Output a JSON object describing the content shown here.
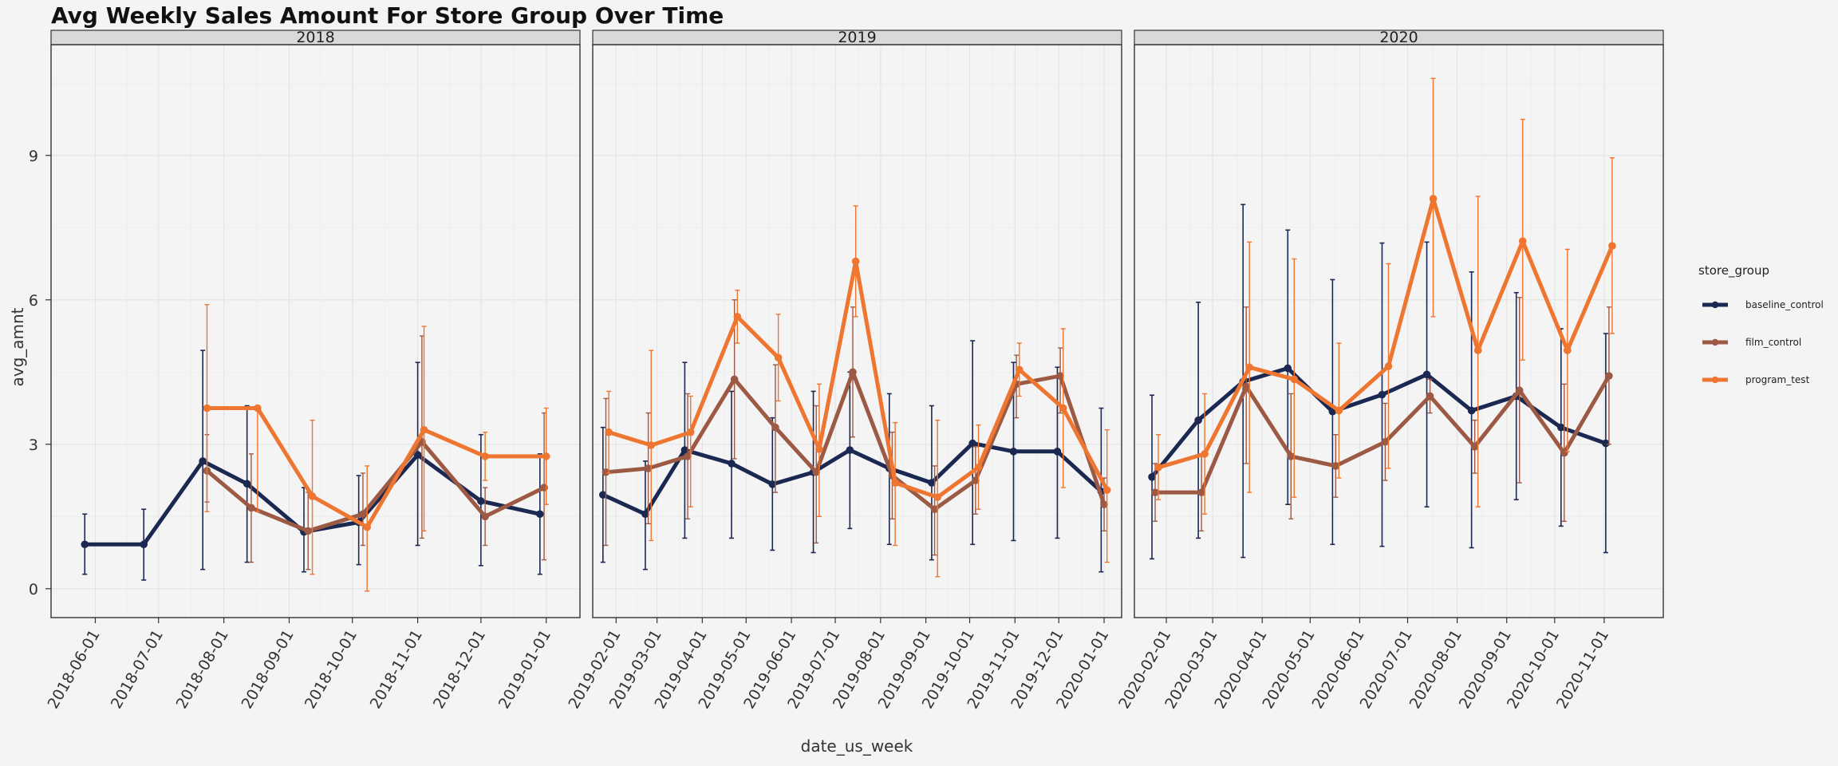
{
  "chart_data": {
    "type": "line",
    "title": "Avg Weekly Sales Amount For Store Group Over Time",
    "xlabel": "date_us_week",
    "ylabel": "avg_amnt",
    "ylim": [
      -0.6,
      11.3
    ],
    "yticks": [
      0,
      3,
      6,
      9
    ],
    "grid": true,
    "legend": {
      "title": "store_group",
      "position": "right"
    },
    "colors": {
      "baseline_control": "#1b2852",
      "film_control": "#9c5a44",
      "program_test": "#ee7630"
    },
    "panels": [
      {
        "label": "2018",
        "xlim": [
          "2018-05-11",
          "2019-01-17"
        ],
        "ticks": [
          "2018-06-01",
          "2018-07-01",
          "2018-08-01",
          "2018-09-01",
          "2018-10-01",
          "2018-11-01",
          "2018-12-01",
          "2019-01-01"
        ],
        "series": [
          {
            "name": "baseline_control",
            "points": [
              {
                "x": "2018-05-27",
                "y": 0.92,
                "lo": 0.3,
                "hi": 1.55
              },
              {
                "x": "2018-06-24",
                "y": 0.92,
                "lo": 0.18,
                "hi": 1.65
              },
              {
                "x": "2018-07-22",
                "y": 2.65,
                "lo": 0.4,
                "hi": 4.95
              },
              {
                "x": "2018-08-12",
                "y": 2.18,
                "lo": 0.55,
                "hi": 3.8
              },
              {
                "x": "2018-09-08",
                "y": 1.18,
                "lo": 0.35,
                "hi": 2.1
              },
              {
                "x": "2018-10-04",
                "y": 1.38,
                "lo": 0.5,
                "hi": 2.35
              },
              {
                "x": "2018-11-01",
                "y": 2.78,
                "lo": 0.9,
                "hi": 4.7
              },
              {
                "x": "2018-12-01",
                "y": 1.82,
                "lo": 0.48,
                "hi": 3.2
              },
              {
                "x": "2018-12-29",
                "y": 1.55,
                "lo": 0.3,
                "hi": 2.8
              }
            ]
          },
          {
            "name": "film_control",
            "points": [
              {
                "x": "2018-07-24",
                "y": 2.45,
                "lo": 1.8,
                "hi": 3.2
              },
              {
                "x": "2018-08-14",
                "y": 1.68,
                "lo": 0.55,
                "hi": 2.8
              },
              {
                "x": "2018-09-10",
                "y": 1.2,
                "lo": 0.4,
                "hi": 2.0
              },
              {
                "x": "2018-10-06",
                "y": 1.55,
                "lo": 0.9,
                "hi": 2.4
              },
              {
                "x": "2018-11-03",
                "y": 3.05,
                "lo": 1.05,
                "hi": 5.25
              },
              {
                "x": "2018-12-03",
                "y": 1.5,
                "lo": 0.9,
                "hi": 2.1
              },
              {
                "x": "2018-12-31",
                "y": 2.1,
                "lo": 0.6,
                "hi": 3.65
              }
            ]
          },
          {
            "name": "program_test",
            "points": [
              {
                "x": "2018-07-24",
                "y": 3.75,
                "lo": 1.6,
                "hi": 5.9
              },
              {
                "x": "2018-08-17",
                "y": 3.75,
                "lo": 1.6,
                "hi": 3.75
              },
              {
                "x": "2018-09-12",
                "y": 1.92,
                "lo": 0.3,
                "hi": 3.5
              },
              {
                "x": "2018-10-08",
                "y": 1.28,
                "lo": -0.05,
                "hi": 2.55
              },
              {
                "x": "2018-11-04",
                "y": 3.3,
                "lo": 1.2,
                "hi": 5.45
              },
              {
                "x": "2018-12-03",
                "y": 2.75,
                "lo": 2.25,
                "hi": 3.25
              },
              {
                "x": "2019-01-01",
                "y": 2.75,
                "lo": 1.75,
                "hi": 3.75
              }
            ]
          }
        ]
      },
      {
        "label": "2019",
        "xlim": [
          "2019-01-16",
          "2020-01-13"
        ],
        "ticks": [
          "2019-02-01",
          "2019-03-01",
          "2019-04-01",
          "2019-05-01",
          "2019-06-01",
          "2019-07-01",
          "2019-08-01",
          "2019-09-01",
          "2019-10-01",
          "2019-11-01",
          "2019-12-01",
          "2020-01-01"
        ],
        "series": [
          {
            "name": "baseline_control",
            "points": [
              {
                "x": "2019-01-23",
                "y": 1.95,
                "lo": 0.55,
                "hi": 3.35
              },
              {
                "x": "2019-02-21",
                "y": 1.55,
                "lo": 0.4,
                "hi": 2.65
              },
              {
                "x": "2019-03-20",
                "y": 2.88,
                "lo": 1.05,
                "hi": 4.7
              },
              {
                "x": "2019-04-21",
                "y": 2.6,
                "lo": 1.05,
                "hi": 4.1
              },
              {
                "x": "2019-05-19",
                "y": 2.17,
                "lo": 0.8,
                "hi": 3.55
              },
              {
                "x": "2019-06-16",
                "y": 2.42,
                "lo": 0.75,
                "hi": 4.1
              },
              {
                "x": "2019-07-11",
                "y": 2.88,
                "lo": 1.25,
                "hi": 4.5
              },
              {
                "x": "2019-08-07",
                "y": 2.5,
                "lo": 0.92,
                "hi": 4.05
              },
              {
                "x": "2019-09-05",
                "y": 2.2,
                "lo": 0.6,
                "hi": 3.8
              },
              {
                "x": "2019-10-03",
                "y": 3.02,
                "lo": 0.92,
                "hi": 5.15
              },
              {
                "x": "2019-10-31",
                "y": 2.85,
                "lo": 1.0,
                "hi": 4.7
              },
              {
                "x": "2019-11-30",
                "y": 2.85,
                "lo": 1.05,
                "hi": 4.6
              },
              {
                "x": "2019-12-30",
                "y": 2.02,
                "lo": 0.35,
                "hi": 3.75
              }
            ]
          },
          {
            "name": "film_control",
            "points": [
              {
                "x": "2019-01-25",
                "y": 2.42,
                "lo": 0.9,
                "hi": 3.95
              },
              {
                "x": "2019-02-23",
                "y": 2.5,
                "lo": 1.35,
                "hi": 3.65
              },
              {
                "x": "2019-03-22",
                "y": 2.75,
                "lo": 1.45,
                "hi": 4.05
              },
              {
                "x": "2019-04-23",
                "y": 4.35,
                "lo": 2.7,
                "hi": 6.0
              },
              {
                "x": "2019-05-21",
                "y": 3.35,
                "lo": 2.0,
                "hi": 4.65
              },
              {
                "x": "2019-06-18",
                "y": 2.42,
                "lo": 0.95,
                "hi": 3.8
              },
              {
                "x": "2019-07-13",
                "y": 4.5,
                "lo": 3.15,
                "hi": 5.85
              },
              {
                "x": "2019-08-09",
                "y": 2.35,
                "lo": 1.45,
                "hi": 3.25
              },
              {
                "x": "2019-09-07",
                "y": 1.65,
                "lo": 0.7,
                "hi": 2.55
              },
              {
                "x": "2019-10-05",
                "y": 2.25,
                "lo": 1.55,
                "hi": 2.95
              },
              {
                "x": "2019-11-02",
                "y": 4.25,
                "lo": 3.55,
                "hi": 4.85
              },
              {
                "x": "2019-12-02",
                "y": 4.42,
                "lo": 3.65,
                "hi": 5.0
              },
              {
                "x": "2020-01-01",
                "y": 1.75,
                "lo": 1.2,
                "hi": 2.3
              }
            ]
          },
          {
            "name": "program_test",
            "points": [
              {
                "x": "2019-01-27",
                "y": 3.25,
                "lo": 2.4,
                "hi": 4.1
              },
              {
                "x": "2019-02-25",
                "y": 2.98,
                "lo": 1.0,
                "hi": 4.95
              },
              {
                "x": "2019-03-24",
                "y": 3.25,
                "lo": 1.7,
                "hi": 4.0
              },
              {
                "x": "2019-04-25",
                "y": 5.65,
                "lo": 5.1,
                "hi": 6.2
              },
              {
                "x": "2019-05-23",
                "y": 4.8,
                "lo": 3.9,
                "hi": 5.7
              },
              {
                "x": "2019-06-20",
                "y": 2.9,
                "lo": 1.5,
                "hi": 4.25
              },
              {
                "x": "2019-07-15",
                "y": 6.8,
                "lo": 5.65,
                "hi": 7.95
              },
              {
                "x": "2019-08-11",
                "y": 2.2,
                "lo": 0.9,
                "hi": 3.45
              },
              {
                "x": "2019-09-09",
                "y": 1.9,
                "lo": 0.25,
                "hi": 3.5
              },
              {
                "x": "2019-10-07",
                "y": 2.52,
                "lo": 1.65,
                "hi": 3.4
              },
              {
                "x": "2019-11-04",
                "y": 4.55,
                "lo": 4.0,
                "hi": 5.1
              },
              {
                "x": "2019-12-04",
                "y": 3.75,
                "lo": 2.1,
                "hi": 5.4
              },
              {
                "x": "2020-01-03",
                "y": 2.05,
                "lo": 0.55,
                "hi": 3.3
              }
            ]
          }
        ]
      },
      {
        "label": "2020",
        "xlim": [
          "2020-01-12",
          "2020-12-08"
        ],
        "ticks": [
          "2020-02-01",
          "2020-03-01",
          "2020-04-01",
          "2020-05-01",
          "2020-06-01",
          "2020-07-01",
          "2020-08-01",
          "2020-09-01",
          "2020-10-01",
          "2020-11-01"
        ],
        "series": [
          {
            "name": "baseline_control",
            "points": [
              {
                "x": "2020-01-23",
                "y": 2.32,
                "lo": 0.62,
                "hi": 4.02
              },
              {
                "x": "2020-02-21",
                "y": 3.5,
                "lo": 1.05,
                "hi": 5.95
              },
              {
                "x": "2020-03-20",
                "y": 4.3,
                "lo": 0.65,
                "hi": 7.98
              },
              {
                "x": "2020-04-17",
                "y": 4.58,
                "lo": 1.75,
                "hi": 7.45
              },
              {
                "x": "2020-05-15",
                "y": 3.68,
                "lo": 0.92,
                "hi": 6.42
              },
              {
                "x": "2020-06-15",
                "y": 4.03,
                "lo": 0.88,
                "hi": 7.18
              },
              {
                "x": "2020-07-13",
                "y": 4.45,
                "lo": 1.7,
                "hi": 7.2
              },
              {
                "x": "2020-08-10",
                "y": 3.7,
                "lo": 0.85,
                "hi": 6.58
              },
              {
                "x": "2020-09-07",
                "y": 4.0,
                "lo": 1.85,
                "hi": 6.15
              },
              {
                "x": "2020-10-05",
                "y": 3.35,
                "lo": 1.3,
                "hi": 5.4
              },
              {
                "x": "2020-11-02",
                "y": 3.02,
                "lo": 0.75,
                "hi": 5.3
              }
            ]
          },
          {
            "name": "film_control",
            "points": [
              {
                "x": "2020-01-25",
                "y": 2.0,
                "lo": 1.4,
                "hi": 2.6
              },
              {
                "x": "2020-02-23",
                "y": 2.0,
                "lo": 1.2,
                "hi": 2.8
              },
              {
                "x": "2020-03-22",
                "y": 4.2,
                "lo": 2.6,
                "hi": 5.85
              },
              {
                "x": "2020-04-19",
                "y": 2.75,
                "lo": 1.45,
                "hi": 4.05
              },
              {
                "x": "2020-05-17",
                "y": 2.55,
                "lo": 1.9,
                "hi": 3.2
              },
              {
                "x": "2020-06-17",
                "y": 3.05,
                "lo": 2.25,
                "hi": 3.85
              },
              {
                "x": "2020-07-15",
                "y": 4.0,
                "lo": 3.65,
                "hi": 4.35
              },
              {
                "x": "2020-08-12",
                "y": 2.95,
                "lo": 2.4,
                "hi": 3.5
              },
              {
                "x": "2020-09-09",
                "y": 4.12,
                "lo": 2.2,
                "hi": 6.05
              },
              {
                "x": "2020-10-07",
                "y": 2.82,
                "lo": 1.4,
                "hi": 4.25
              },
              {
                "x": "2020-11-04",
                "y": 4.42,
                "lo": 3.0,
                "hi": 5.85
              }
            ]
          },
          {
            "name": "program_test",
            "points": [
              {
                "x": "2020-01-27",
                "y": 2.52,
                "lo": 1.85,
                "hi": 3.2
              },
              {
                "x": "2020-02-25",
                "y": 2.8,
                "lo": 1.55,
                "hi": 4.05
              },
              {
                "x": "2020-03-24",
                "y": 4.6,
                "lo": 2.0,
                "hi": 7.2
              },
              {
                "x": "2020-04-21",
                "y": 4.35,
                "lo": 1.9,
                "hi": 6.85
              },
              {
                "x": "2020-05-19",
                "y": 3.7,
                "lo": 2.3,
                "hi": 5.1
              },
              {
                "x": "2020-06-19",
                "y": 4.62,
                "lo": 2.5,
                "hi": 6.75
              },
              {
                "x": "2020-07-17",
                "y": 8.1,
                "lo": 5.65,
                "hi": 10.6
              },
              {
                "x": "2020-08-14",
                "y": 4.95,
                "lo": 1.7,
                "hi": 8.15
              },
              {
                "x": "2020-09-11",
                "y": 7.22,
                "lo": 4.75,
                "hi": 9.75
              },
              {
                "x": "2020-10-09",
                "y": 4.95,
                "lo": 2.85,
                "hi": 7.05
              },
              {
                "x": "2020-11-06",
                "y": 7.12,
                "lo": 5.3,
                "hi": 8.95
              }
            ]
          }
        ]
      }
    ]
  }
}
